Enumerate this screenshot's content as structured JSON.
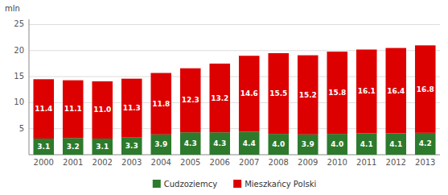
{
  "chart_data": {
    "type": "bar",
    "stacked": true,
    "y_label": "mln",
    "categories": [
      "2000",
      "2001",
      "2002",
      "2003",
      "2004",
      "2005",
      "2006",
      "2007",
      "2008",
      "2009",
      "2010",
      "2011",
      "2012",
      "2013"
    ],
    "series": [
      {
        "name": "Cudzoziemcy",
        "color": "#2d7a2d",
        "values": [
          3.1,
          3.2,
          3.1,
          3.3,
          3.9,
          4.3,
          4.3,
          4.4,
          4.0,
          3.9,
          4.0,
          4.1,
          4.1,
          4.2
        ]
      },
      {
        "name": "Mieszkańcy Polski",
        "color": "#dd0000",
        "values": [
          11.4,
          11.1,
          11.0,
          11.3,
          11.8,
          12.3,
          13.2,
          14.6,
          15.5,
          15.2,
          15.8,
          16.1,
          16.4,
          16.8
        ]
      }
    ],
    "ylim": [
      0,
      26
    ],
    "yticks": [
      5,
      10,
      15,
      20,
      25
    ],
    "grid": true,
    "legend": "bottom",
    "data_labels": true
  }
}
